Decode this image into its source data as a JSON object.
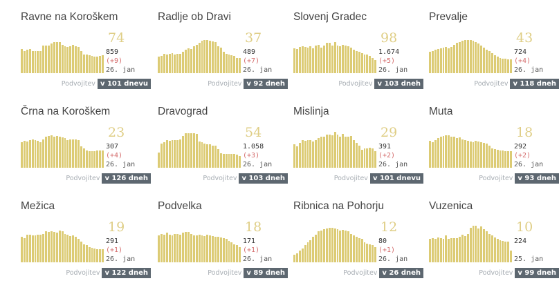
{
  "colors": {
    "bar": "#dccb74",
    "badge": "#5d6770",
    "change": "#d46b6b"
  },
  "doubling_label": "Podvojitev",
  "cards": [
    {
      "name": "Ravne na Koroškem",
      "active": "74",
      "total": "859",
      "change": "(+9)",
      "date": "26. jan",
      "doubling": "v 101 dnevu",
      "bars": [
        0.62,
        0.58,
        0.61,
        0.63,
        0.58,
        0.58,
        0.58,
        0.58,
        0.72,
        0.72,
        0.72,
        0.77,
        0.8,
        0.8,
        0.8,
        0.74,
        0.7,
        0.68,
        0.7,
        0.74,
        0.7,
        0.68,
        0.58,
        0.49,
        0.49,
        0.47,
        0.45,
        0.43,
        0.43,
        0.45,
        0.47
      ]
    },
    {
      "name": "Radlje ob Dravi",
      "active": "37",
      "total": "489",
      "change": "(+7)",
      "date": "26. jan",
      "doubling": "v 92 dneh",
      "bars": [
        0.42,
        0.45,
        0.5,
        0.48,
        0.5,
        0.52,
        0.48,
        0.5,
        0.5,
        0.55,
        0.6,
        0.64,
        0.62,
        0.7,
        0.74,
        0.78,
        0.84,
        0.86,
        0.86,
        0.84,
        0.82,
        0.8,
        0.7,
        0.66,
        0.56,
        0.5,
        0.48,
        0.46,
        0.44,
        0.4,
        0.4
      ]
    },
    {
      "name": "Slovenj Gradec",
      "active": "98",
      "total": "1.674",
      "change": "(+5)",
      "date": "26. jan",
      "doubling": "v 103 dneh",
      "bars": [
        0.64,
        0.62,
        0.68,
        0.7,
        0.68,
        0.66,
        0.7,
        0.64,
        0.72,
        0.74,
        0.66,
        0.72,
        0.78,
        0.78,
        0.72,
        0.8,
        0.72,
        0.7,
        0.74,
        0.72,
        0.7,
        0.66,
        0.6,
        0.58,
        0.56,
        0.52,
        0.48,
        0.48,
        0.44,
        0.4,
        0.34
      ]
    },
    {
      "name": "Prevalje",
      "active": "43",
      "total": "724",
      "change": "(+4)",
      "date": "26. jan",
      "doubling": "v 118 dneh",
      "bars": [
        0.55,
        0.58,
        0.6,
        0.62,
        0.64,
        0.66,
        0.68,
        0.64,
        0.68,
        0.74,
        0.78,
        0.8,
        0.84,
        0.86,
        0.86,
        0.86,
        0.84,
        0.8,
        0.76,
        0.72,
        0.66,
        0.6,
        0.58,
        0.52,
        0.46,
        0.42,
        0.4,
        0.38,
        0.38,
        0.36,
        0.36
      ]
    },
    {
      "name": "Črna na Koroškem",
      "active": "23",
      "total": "307",
      "change": "(+4)",
      "date": "26. jan",
      "doubling": "v 126 dneh",
      "bars": [
        0.66,
        0.7,
        0.68,
        0.72,
        0.74,
        0.72,
        0.7,
        0.66,
        0.74,
        0.8,
        0.82,
        0.84,
        0.8,
        0.82,
        0.8,
        0.78,
        0.76,
        0.72,
        0.74,
        0.74,
        0.74,
        0.72,
        0.56,
        0.5,
        0.44,
        0.42,
        0.42,
        0.42,
        0.44,
        0.44,
        0.44
      ]
    },
    {
      "name": "Dravograd",
      "active": "54",
      "total": "1.058",
      "change": "(+3)",
      "date": "26. jan",
      "doubling": "v 103 dneh",
      "bars": [
        0.4,
        0.62,
        0.66,
        0.72,
        0.7,
        0.72,
        0.72,
        0.72,
        0.74,
        0.82,
        0.9,
        0.9,
        0.9,
        0.9,
        0.88,
        0.68,
        0.66,
        0.62,
        0.6,
        0.6,
        0.58,
        0.58,
        0.48,
        0.38,
        0.36,
        0.36,
        0.36,
        0.36,
        0.36,
        0.34,
        0.3
      ]
    },
    {
      "name": "Mislinja",
      "active": "29",
      "total": "391",
      "change": "(+2)",
      "date": "26. jan",
      "doubling": "v 101 dnevu",
      "bars": [
        0.6,
        0.56,
        0.64,
        0.72,
        0.7,
        0.72,
        0.72,
        0.68,
        0.72,
        0.76,
        0.8,
        0.8,
        0.86,
        0.86,
        0.84,
        0.92,
        0.86,
        0.8,
        0.88,
        0.8,
        0.8,
        0.82,
        0.72,
        0.64,
        0.58,
        0.46,
        0.5,
        0.5,
        0.52,
        0.5,
        0.42
      ]
    },
    {
      "name": "Muta",
      "active": "18",
      "total": "292",
      "change": "(+2)",
      "date": "26. jan",
      "doubling": "v 93 dneh",
      "bars": [
        0.7,
        0.66,
        0.72,
        0.76,
        0.8,
        0.82,
        0.84,
        0.84,
        0.8,
        0.8,
        0.76,
        0.78,
        0.74,
        0.72,
        0.7,
        0.68,
        0.66,
        0.7,
        0.68,
        0.66,
        0.64,
        0.62,
        0.58,
        0.5,
        0.48,
        0.46,
        0.44,
        0.44,
        0.42,
        0.42,
        0.42
      ]
    },
    {
      "name": "Mežica",
      "active": "19",
      "total": "291",
      "change": "(+1)",
      "date": "26. jan",
      "doubling": "v 122 dneh",
      "bars": [
        0.66,
        0.62,
        0.72,
        0.72,
        0.7,
        0.7,
        0.72,
        0.72,
        0.74,
        0.8,
        0.78,
        0.8,
        0.78,
        0.76,
        0.82,
        0.8,
        0.74,
        0.72,
        0.68,
        0.7,
        0.66,
        0.6,
        0.54,
        0.46,
        0.44,
        0.4,
        0.38,
        0.36,
        0.34,
        0.34,
        0.34
      ]
    },
    {
      "name": "Podvelka",
      "active": "18",
      "total": "171",
      "change": "(+1)",
      "date": "26. jan",
      "doubling": "v 89 dneh",
      "bars": [
        0.7,
        0.74,
        0.72,
        0.76,
        0.72,
        0.7,
        0.74,
        0.74,
        0.72,
        0.76,
        0.78,
        0.78,
        0.74,
        0.7,
        0.7,
        0.72,
        0.7,
        0.68,
        0.72,
        0.7,
        0.68,
        0.66,
        0.66,
        0.64,
        0.62,
        0.6,
        0.56,
        0.52,
        0.46,
        0.44,
        0.4
      ]
    },
    {
      "name": "Ribnica na Pohorju",
      "active": "12",
      "total": "80",
      "change": "(+1)",
      "date": "26. jan",
      "doubling": "v 26 dneh",
      "bars": [
        0.2,
        0.24,
        0.3,
        0.36,
        0.44,
        0.52,
        0.58,
        0.66,
        0.72,
        0.8,
        0.82,
        0.86,
        0.88,
        0.9,
        0.9,
        0.88,
        0.86,
        0.82,
        0.84,
        0.82,
        0.8,
        0.74,
        0.7,
        0.66,
        0.62,
        0.6,
        0.52,
        0.48,
        0.46,
        0.44,
        0.4
      ]
    },
    {
      "name": "Vuzenica",
      "active": "10",
      "total": "224",
      "change": "",
      "date": "25. jan",
      "doubling": "v 99 dneh",
      "bars": [
        0.6,
        0.62,
        0.6,
        0.64,
        0.62,
        0.6,
        0.7,
        0.6,
        0.62,
        0.62,
        0.62,
        0.66,
        0.72,
        0.68,
        0.74,
        0.9,
        0.94,
        0.94,
        0.88,
        0.92,
        0.86,
        0.8,
        0.74,
        0.7,
        0.64,
        0.6,
        0.58,
        0.56,
        0.54,
        0.54,
        0.3
      ]
    }
  ]
}
